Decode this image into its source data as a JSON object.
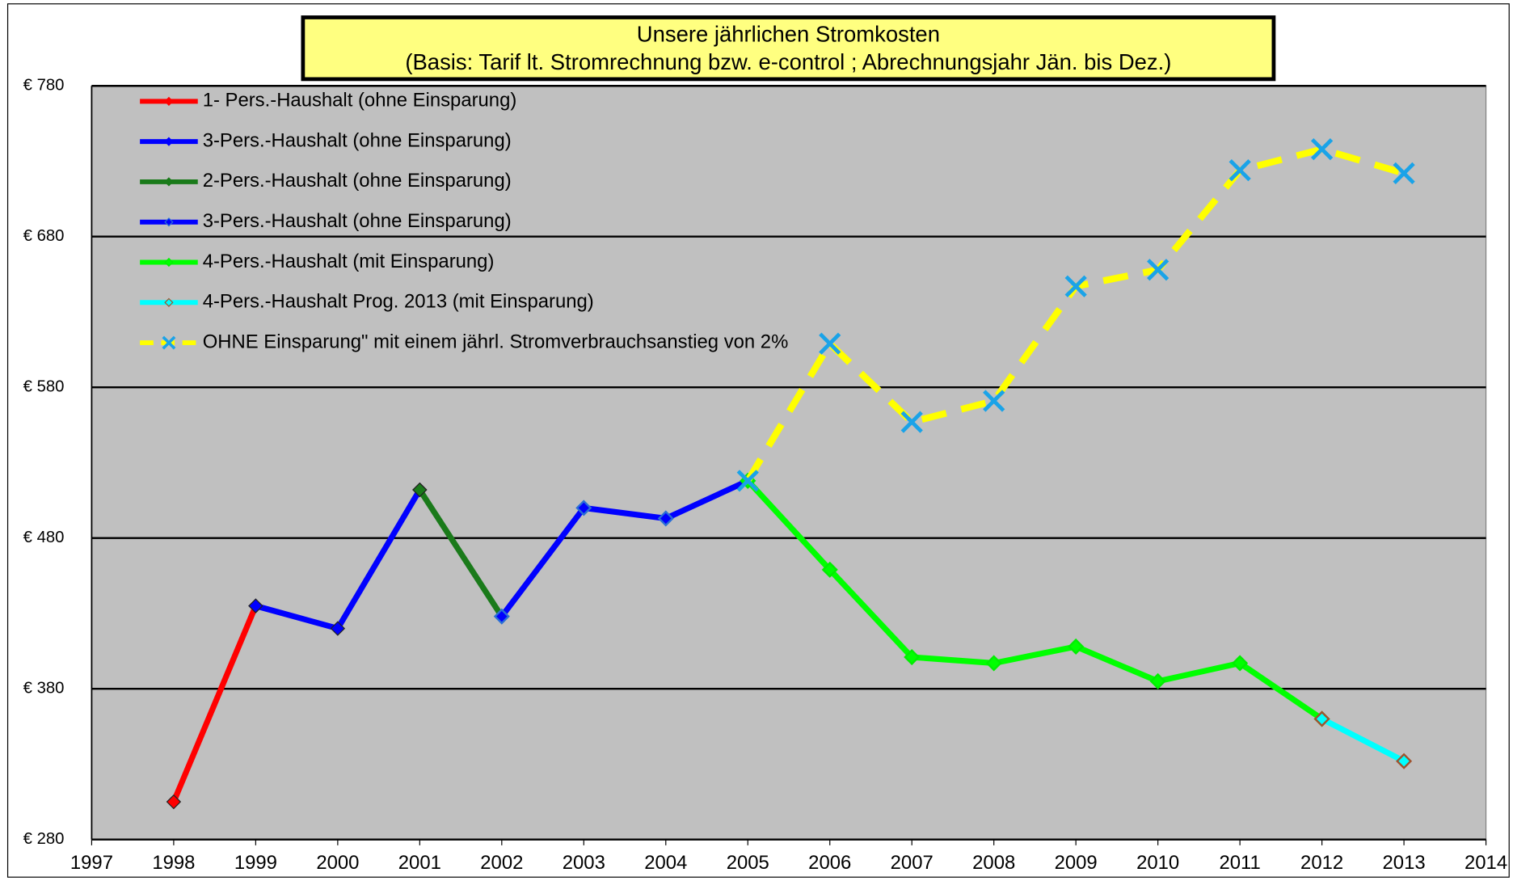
{
  "chart_data": {
    "type": "line",
    "title": "Unsere  jährlichen Stromkosten",
    "subtitle": "(Basis: Tarif lt. Stromrechnung bzw. e-control ;  Abrechnungsjahr Jän. bis Dez.)",
    "x": [
      1998,
      1999,
      2000,
      2001,
      2002,
      2003,
      2004,
      2005,
      2006,
      2007,
      2008,
      2009,
      2010,
      2011,
      2012,
      2013
    ],
    "series": [
      {
        "name": "1- Pers.-Haushalt (ohne Einsparung)",
        "color": "#ff0000",
        "marker": "diamond",
        "marker_color": "#ff0000",
        "values": [
          305,
          435,
          null,
          null,
          null,
          null,
          null,
          null,
          null,
          null,
          null,
          null,
          null,
          null,
          null,
          null
        ]
      },
      {
        "name": "3-Pers.-Haushalt (ohne Einsparung)",
        "color": "#0000ff",
        "marker": "diamond",
        "marker_color": "#0000ff",
        "values": [
          null,
          435,
          420,
          512,
          null,
          null,
          null,
          null,
          null,
          null,
          null,
          null,
          null,
          null,
          null,
          null
        ]
      },
      {
        "name": "2-Pers.-Haushalt (ohne Einsparung)",
        "color": "#1a7a1a",
        "marker": "diamond",
        "marker_color": "#1a7a1a",
        "values": [
          null,
          null,
          null,
          512,
          428,
          null,
          null,
          null,
          null,
          null,
          null,
          null,
          null,
          null,
          null,
          null
        ]
      },
      {
        "name": "3-Pers.-Haushalt (ohne Einsparung)",
        "color": "#0000ff",
        "marker": "diamond",
        "marker_color": "#2a6fd6",
        "values": [
          null,
          null,
          null,
          null,
          428,
          500,
          493,
          518,
          null,
          null,
          null,
          null,
          null,
          null,
          null,
          null
        ]
      },
      {
        "name": "4-Pers.-Haushalt (mit Einsparung)",
        "color": "#00ff00",
        "marker": "diamond",
        "marker_color": "#00ee00",
        "values": [
          null,
          null,
          null,
          null,
          null,
          null,
          null,
          518,
          459,
          401,
          397,
          408,
          385,
          397,
          360,
          null
        ]
      },
      {
        "name": "4-Pers.-Haushalt Prog. 2013 (mit Einsparung)",
        "color": "#00ffff",
        "marker": "diamond",
        "marker_color": "#a0522d",
        "values": [
          null,
          null,
          null,
          null,
          null,
          null,
          null,
          null,
          null,
          null,
          null,
          null,
          null,
          null,
          360,
          332
        ]
      },
      {
        "name": "OHNE Einsparung\" mit einem jährl. Stromverbrauchsanstieg von 2%",
        "color": "#ffff00",
        "dash": true,
        "marker": "x",
        "marker_color": "#1aa3e8",
        "values": [
          null,
          null,
          null,
          null,
          null,
          null,
          null,
          518,
          609,
          557,
          571,
          647,
          658,
          724,
          738,
          722
        ]
      }
    ],
    "xlim": [
      1997,
      2014
    ],
    "xticks": [
      1997,
      1998,
      1999,
      2000,
      2001,
      2002,
      2003,
      2004,
      2005,
      2006,
      2007,
      2008,
      2009,
      2010,
      2011,
      2012,
      2013,
      2014
    ],
    "ylim": [
      280,
      780
    ],
    "yticks": [
      {
        "value": 280,
        "label": "€ 280"
      },
      {
        "value": 380,
        "label": "€ 380"
      },
      {
        "value": 480,
        "label": "€ 480"
      },
      {
        "value": 580,
        "label": "€ 580"
      },
      {
        "value": 680,
        "label": "€ 680"
      },
      {
        "value": 780,
        "label": "€ 780"
      }
    ],
    "grid": true,
    "legend": "upper left"
  }
}
